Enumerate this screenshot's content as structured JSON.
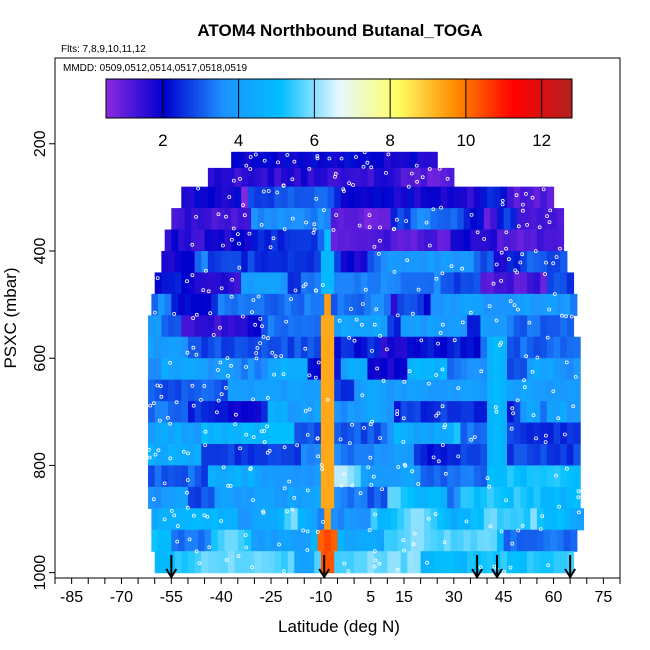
{
  "chart_data": {
    "type": "heatmap",
    "title": "ATOM4 Northbound Butanal_TOGA",
    "flights_note": "Flts: 7,8,9,10,11,12",
    "dates_note": "MMDD: 0509,0512,0514,0517,0518,0519",
    "xlabel": "Latitude (deg N)",
    "ylabel": "PSXC (mbar)",
    "xlim": [
      -90,
      80
    ],
    "ylim": [
      1010,
      40
    ],
    "x_tick_labels": [
      "-85",
      "-70",
      "-55",
      "-40",
      "-25",
      "-10",
      "5",
      "15",
      "30",
      "45",
      "60",
      "75"
    ],
    "x_tick_values": [
      -85,
      -70,
      -55,
      -40,
      -25,
      -10,
      5,
      15,
      30,
      45,
      60,
      75
    ],
    "y_tick_labels": [
      "200",
      "400",
      "600",
      "800",
      "1000"
    ],
    "y_tick_values": [
      200,
      400,
      600,
      800,
      1000
    ],
    "colorbar": {
      "range": [
        0.5,
        12.8
      ],
      "tick_labels": [
        "2",
        "4",
        "6",
        "8",
        "10",
        "12"
      ],
      "tick_values": [
        2,
        4,
        6,
        8,
        10,
        12
      ],
      "colors": [
        "#8a2be2",
        "#0000cd",
        "#1e90ff",
        "#00bfff",
        "#e6f7ff",
        "#ffff66",
        "#ff8c00",
        "#ff0000",
        "#b22222"
      ]
    },
    "profile_latitudes": [
      -55,
      -9,
      37,
      43,
      65
    ],
    "bands": [
      {
        "p": [
          215,
          245
        ],
        "lat": [
          -37,
          24
        ]
      },
      {
        "p": [
          245,
          280
        ],
        "lat": [
          -44,
          30
        ]
      },
      {
        "p": [
          280,
          320
        ],
        "lat": [
          -52,
          60
        ]
      },
      {
        "p": [
          320,
          360
        ],
        "lat": [
          -55,
          63
        ]
      },
      {
        "p": [
          360,
          400
        ],
        "lat": [
          -57,
          63
        ]
      },
      {
        "p": [
          400,
          440
        ],
        "lat": [
          -58,
          64
        ]
      },
      {
        "p": [
          440,
          480
        ],
        "lat": [
          -60,
          66
        ]
      },
      {
        "p": [
          480,
          520
        ],
        "lat": [
          -61,
          66
        ]
      },
      {
        "p": [
          520,
          560
        ],
        "lat": [
          -62,
          66
        ]
      },
      {
        "p": [
          560,
          600
        ],
        "lat": [
          -62,
          67
        ]
      },
      {
        "p": [
          600,
          640
        ],
        "lat": [
          -62,
          67
        ]
      },
      {
        "p": [
          640,
          680
        ],
        "lat": [
          -62,
          67
        ]
      },
      {
        "p": [
          680,
          720
        ],
        "lat": [
          -62,
          67
        ]
      },
      {
        "p": [
          720,
          760
        ],
        "lat": [
          -62,
          67
        ]
      },
      {
        "p": [
          760,
          800
        ],
        "lat": [
          -62,
          68
        ]
      },
      {
        "p": [
          800,
          840
        ],
        "lat": [
          -62,
          68
        ]
      },
      {
        "p": [
          840,
          880
        ],
        "lat": [
          -62,
          68
        ]
      },
      {
        "p": [
          880,
          920
        ],
        "lat": [
          -61,
          68
        ]
      },
      {
        "p": [
          920,
          960
        ],
        "lat": [
          -61,
          67
        ]
      },
      {
        "p": [
          960,
          1000
        ],
        "lat": [
          -60,
          66
        ]
      }
    ],
    "enhancements": [
      {
        "lat": -9,
        "p": [
          500,
          1000
        ],
        "width": 3,
        "value": 9.5
      },
      {
        "lat": -9,
        "p": [
          930,
          990
        ],
        "width": 4,
        "value": 10.5
      },
      {
        "lat": -9,
        "p": [
          360,
          500
        ],
        "width": 3,
        "value": 5.0
      },
      {
        "lat": 42,
        "p": [
          560,
          1000
        ],
        "width": 4,
        "value": 5.0
      },
      {
        "lat": 18,
        "p": [
          880,
          940
        ],
        "width": 18,
        "value": 6.2
      },
      {
        "lat": -38,
        "p": [
          940,
          990
        ],
        "width": 12,
        "value": 6.0
      },
      {
        "lat": -5,
        "p": [
          800,
          850
        ],
        "width": 10,
        "value": 6.5
      },
      {
        "lat": 5,
        "p": [
          640,
          700
        ],
        "width": 10,
        "value": 4.5
      },
      {
        "lat": -20,
        "p": [
          880,
          920
        ],
        "width": 14,
        "value": 5.2
      },
      {
        "lat": 10,
        "p": [
          400,
          440
        ],
        "width": 12,
        "value": 3.8
      },
      {
        "lat": 55,
        "p": [
          880,
          920
        ],
        "width": 10,
        "value": 4.0
      },
      {
        "lat": -40,
        "p": [
          600,
          640
        ],
        "width": 12,
        "value": 4.2
      }
    ]
  }
}
